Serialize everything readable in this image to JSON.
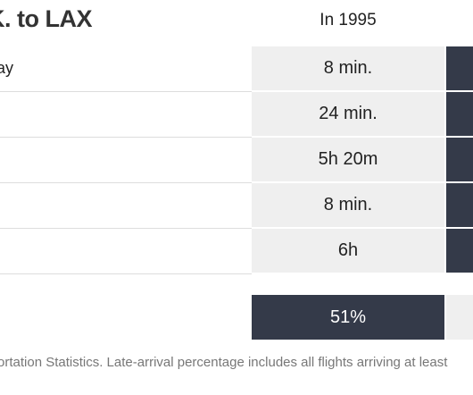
{
  "header": {
    "title": "K. to LAX",
    "column": "In 1995"
  },
  "rows": [
    {
      "label": "ay",
      "value": "8 min."
    },
    {
      "value": "24 min."
    },
    {
      "value": "5h 20m"
    },
    {
      "value": "8 min."
    },
    {
      "value": "6h"
    }
  ],
  "late": {
    "value": "51%"
  },
  "footer": "ortation Statistics. Late-arrival percentage includes all flights arriving at least"
}
